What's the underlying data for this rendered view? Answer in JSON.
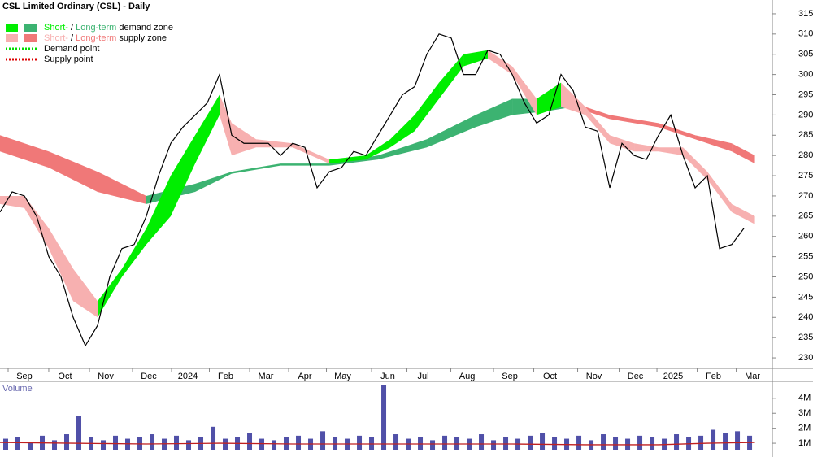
{
  "chart_data": [
    {
      "type": "line",
      "title": "CSL Limited Ordinary (CSL) - Daily",
      "x": [
        0,
        1,
        2,
        3,
        4,
        5,
        6,
        7,
        8,
        9,
        10,
        11,
        12,
        13,
        14,
        15,
        16,
        17,
        18,
        19,
        20,
        21,
        22,
        23,
        24,
        25,
        26,
        27,
        28,
        29,
        30,
        31,
        32,
        33,
        34,
        35,
        36,
        37,
        38,
        39,
        40,
        41,
        42,
        43,
        44,
        45,
        46,
        47,
        48,
        49,
        50,
        51,
        52,
        53,
        54,
        55,
        56,
        57,
        58,
        59,
        60,
        61
      ],
      "series": [
        {
          "name": "Close",
          "color": "#000000",
          "values": [
            266,
            271,
            270,
            265,
            255,
            250,
            240,
            233,
            238,
            250,
            257,
            258,
            265,
            275,
            283,
            287,
            290,
            293,
            300,
            285,
            283,
            283,
            283,
            280,
            283,
            282,
            272,
            276,
            277,
            281,
            280,
            285,
            290,
            295,
            297,
            305,
            310,
            309,
            300,
            300,
            306,
            305,
            300,
            293,
            288,
            290,
            300,
            296,
            287,
            286,
            272,
            283,
            280,
            279,
            285,
            290,
            280,
            272,
            275,
            257,
            258,
            262
          ]
        }
      ],
      "zones": [
        {
          "x": [
            0,
            2,
            4,
            6,
            8,
            10,
            12,
            14,
            16,
            18,
            19,
            21,
            24,
            27,
            30,
            32,
            34,
            36,
            38,
            40,
            42,
            44,
            46,
            48,
            50,
            52,
            54,
            56,
            58,
            60,
            61.9
          ],
          "upper": [
            270,
            270,
            262,
            252,
            244,
            252,
            262,
            275,
            285,
            295,
            288,
            284,
            283,
            279,
            280,
            284,
            290,
            298,
            305,
            306,
            302,
            294,
            298,
            292,
            285,
            283,
            282,
            282,
            276,
            268,
            265
          ],
          "lower": [
            268,
            267,
            257,
            244,
            240,
            250,
            258,
            265,
            278,
            290,
            280,
            282,
            282,
            278,
            279,
            282,
            286,
            294,
            302,
            304,
            300,
            290,
            292,
            290,
            283,
            281,
            281,
            280,
            274,
            266,
            263
          ]
        },
        {
          "x": [
            0,
            4,
            8,
            12,
            16,
            19,
            23,
            27,
            31,
            35,
            39,
            42,
            45,
            47,
            50,
            54,
            57,
            60,
            61.9
          ],
          "upper": [
            285,
            281,
            276,
            270,
            273,
            276,
            278,
            278,
            280,
            284,
            290,
            294,
            294,
            293,
            290,
            288,
            285,
            283,
            280
          ],
          "lower": [
            281,
            277,
            271,
            268,
            271,
            275.5,
            277.5,
            277.5,
            279,
            282,
            287,
            290,
            291,
            292,
            289,
            287,
            284,
            281,
            278
          ]
        }
      ],
      "legend": [
        {
          "short": "Short-",
          "sep": " / ",
          "long": "Long-term",
          "rest": " demand zone",
          "short_color": "#00ee00",
          "long_color": "#3cb371"
        },
        {
          "short": "Short-",
          "sep": " / ",
          "long": "Long-term",
          "rest": " supply zone",
          "short_color": "#f7b0b0",
          "long_color": "#f07878"
        },
        {
          "text": "Demand point",
          "color": "#00dd00"
        },
        {
          "text": "Supply point",
          "color": "#dd0000"
        }
      ],
      "xlim": [
        0,
        63.33
      ],
      "xticks": [
        {
          "value": 2,
          "label": "Sep"
        },
        {
          "value": 5.33,
          "label": "Oct"
        },
        {
          "value": 8.67,
          "label": "Nov"
        },
        {
          "value": 12.2,
          "label": "Dec"
        },
        {
          "value": 15.4,
          "label": "2024"
        },
        {
          "value": 18.5,
          "label": "Feb"
        },
        {
          "value": 21.8,
          "label": "Mar"
        },
        {
          "value": 25,
          "label": "Apr"
        },
        {
          "value": 28.1,
          "label": "May"
        },
        {
          "value": 31.8,
          "label": "Jun"
        },
        {
          "value": 34.7,
          "label": "Jul"
        },
        {
          "value": 38.3,
          "label": "Aug"
        },
        {
          "value": 41.8,
          "label": "Sep"
        },
        {
          "value": 45.1,
          "label": "Oct"
        },
        {
          "value": 48.7,
          "label": "Nov"
        },
        {
          "value": 52.1,
          "label": "Dec"
        },
        {
          "value": 55.2,
          "label": "2025"
        },
        {
          "value": 58.5,
          "label": "Feb"
        },
        {
          "value": 61.7,
          "label": "Mar"
        }
      ],
      "ylim": [
        227.4,
        317.4
      ],
      "yticks": [
        230,
        235,
        240,
        245,
        250,
        255,
        260,
        265,
        270,
        275,
        280,
        285,
        290,
        295,
        300,
        305,
        310,
        315
      ]
    },
    {
      "type": "bar",
      "title": "Volume",
      "color": "#5050a8",
      "values": [
        1.3,
        1.4,
        1.1,
        1.5,
        1.2,
        1.6,
        2.8,
        1.4,
        1.2,
        1.5,
        1.3,
        1.4,
        1.6,
        1.3,
        1.5,
        1.2,
        1.4,
        2.1,
        1.3,
        1.4,
        1.7,
        1.3,
        1.2,
        1.4,
        1.5,
        1.3,
        1.8,
        1.4,
        1.3,
        1.5,
        1.4,
        4.9,
        1.6,
        1.3,
        1.4,
        1.2,
        1.5,
        1.4,
        1.3,
        1.6,
        1.2,
        1.4,
        1.3,
        1.5,
        1.7,
        1.4,
        1.3,
        1.5,
        1.2,
        1.6,
        1.4,
        1.3,
        1.5,
        1.4,
        1.3,
        1.6,
        1.4,
        1.5,
        1.9,
        1.7,
        1.8,
        1.5
      ],
      "average": {
        "color": "#c02020",
        "x": [
          0,
          6,
          12,
          18,
          24,
          30,
          36,
          42,
          48,
          54,
          58,
          61.9
        ],
        "values": [
          1.05,
          1.0,
          0.95,
          1.0,
          0.95,
          0.95,
          0.95,
          0.95,
          0.9,
          0.9,
          1.0,
          1.05
        ]
      },
      "ylim": [
        0.57,
        5.13
      ],
      "yticks": [
        {
          "value": 1,
          "label": "1M"
        },
        {
          "value": 2,
          "label": "2M"
        },
        {
          "value": 3,
          "label": "3M"
        },
        {
          "value": 4,
          "label": "4M"
        }
      ]
    }
  ]
}
